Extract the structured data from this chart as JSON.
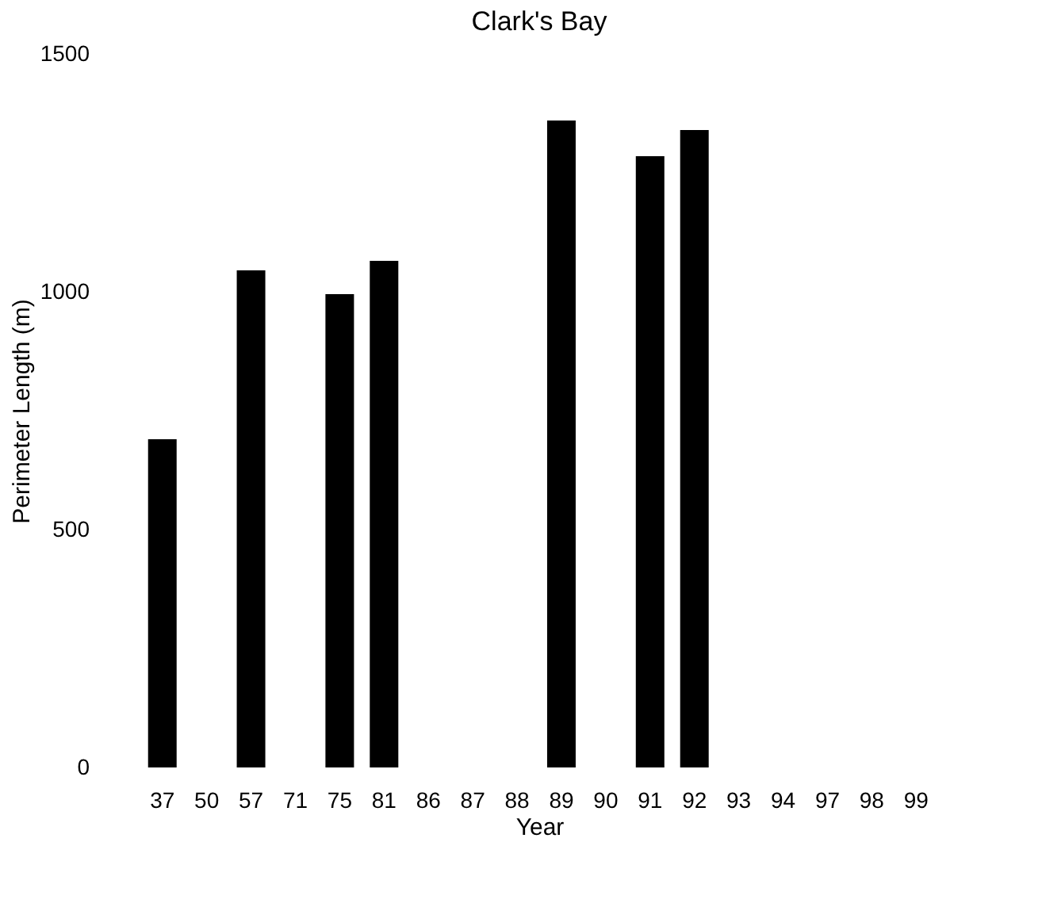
{
  "chart_data": {
    "type": "bar",
    "title": "Clark's Bay",
    "xlabel": "Year",
    "ylabel": "Perimeter Length (m)",
    "categories": [
      "37",
      "50",
      "57",
      "71",
      "75",
      "81",
      "86",
      "87",
      "88",
      "89",
      "90",
      "91",
      "92",
      "93",
      "94",
      "97",
      "98",
      "99"
    ],
    "values": [
      690,
      null,
      1045,
      null,
      995,
      1065,
      null,
      null,
      null,
      1360,
      null,
      1285,
      1340,
      null,
      null,
      null,
      null,
      null
    ],
    "color": "#000000",
    "ylim": [
      0,
      1500
    ],
    "yticks": [
      0,
      500,
      1000,
      1500
    ],
    "grid": false
  }
}
